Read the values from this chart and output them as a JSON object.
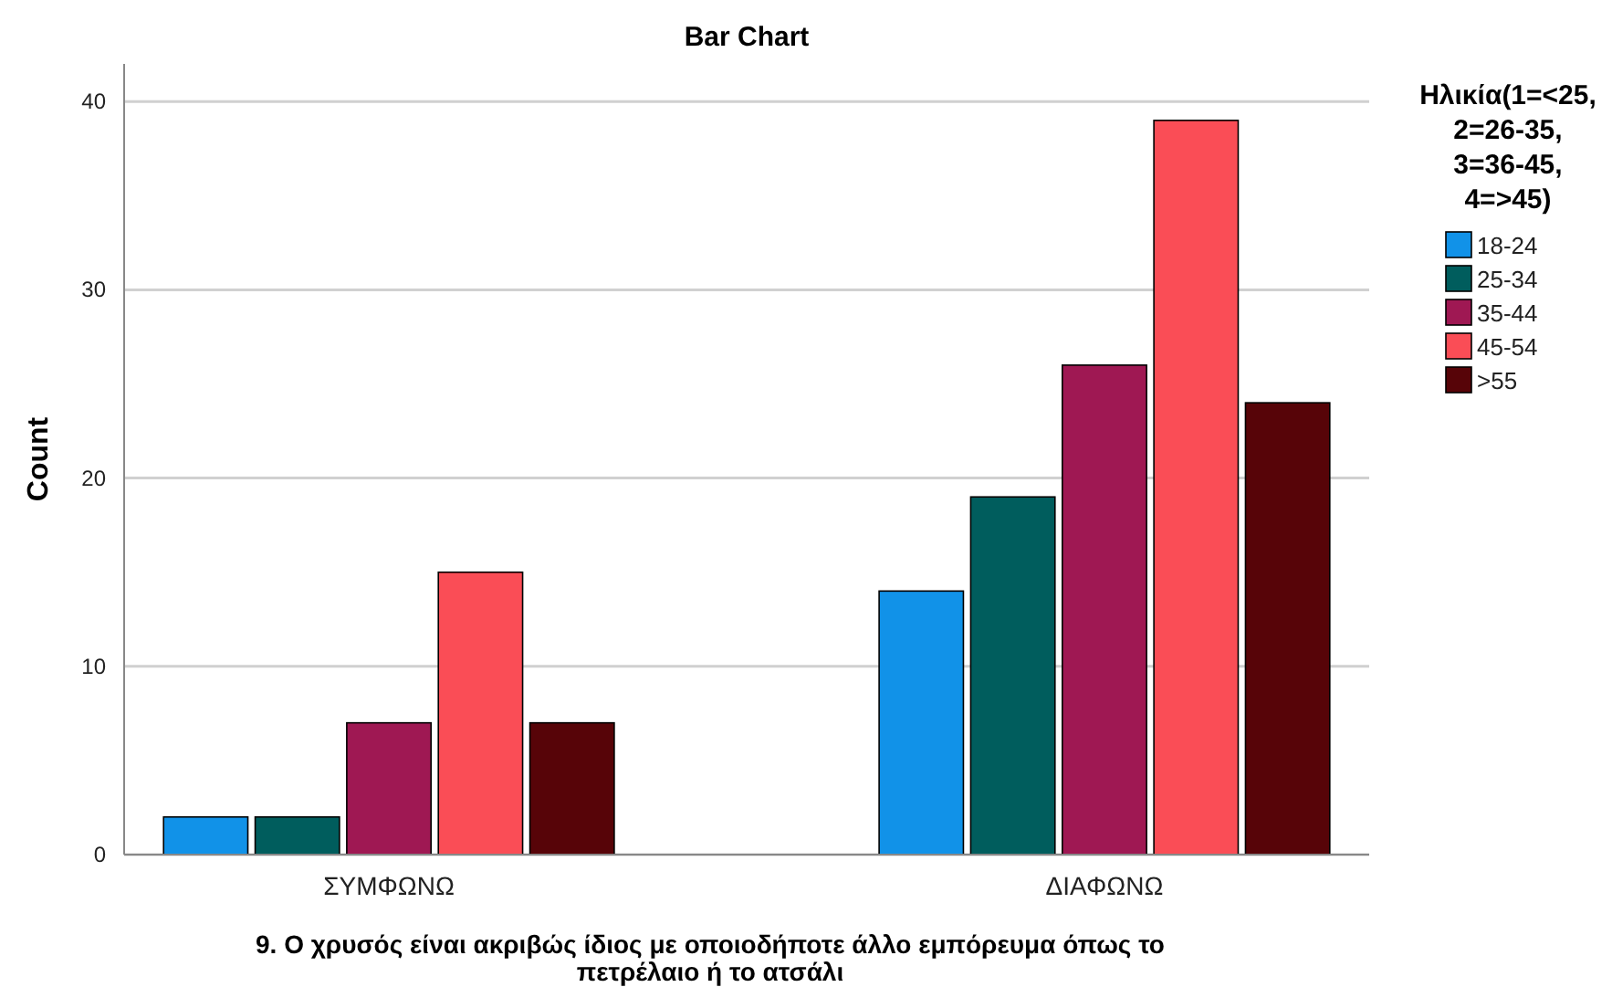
{
  "chart_data": {
    "type": "bar",
    "title": "Bar Chart",
    "xlabel": "9. Ο χρυσός είναι ακριβώς ίδιος με οποιοδήποτε άλλο εμπόρευμα όπως το πετρέλαιο ή το ατσάλι",
    "ylabel": "Count",
    "legend_title": "Ηλικία(1=<25, 2=26-35, 3=36-45, 4=>45)",
    "categories": [
      "ΣΥΜΦΩΝΩ",
      "ΔΙΑΦΩΝΩ"
    ],
    "series": [
      {
        "name": "18-24",
        "color": "#1192e8",
        "values": [
          2,
          14
        ]
      },
      {
        "name": "25-34",
        "color": "#005d5d",
        "values": [
          2,
          19
        ]
      },
      {
        "name": "35-44",
        "color": "#9f1853",
        "values": [
          7,
          26
        ]
      },
      {
        "name": "45-54",
        "color": "#fa4d56",
        "values": [
          15,
          39
        ]
      },
      {
        "name": ">55",
        "color": "#570408",
        "values": [
          7,
          24
        ]
      }
    ],
    "ylim": [
      0,
      42
    ],
    "yticks": [
      0,
      10,
      20,
      30,
      40
    ],
    "grid": "y",
    "legend": "right"
  }
}
